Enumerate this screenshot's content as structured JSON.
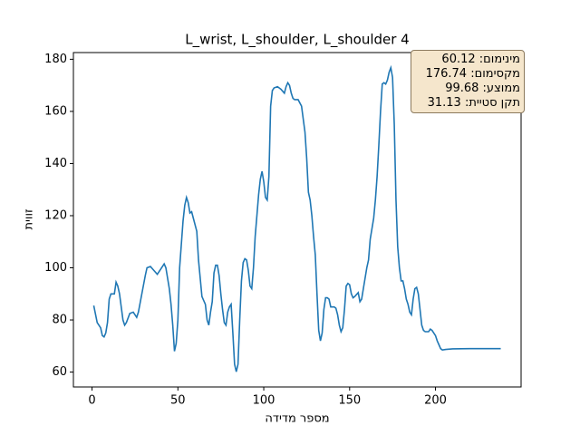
{
  "chart_data": {
    "type": "line",
    "title": "L_wrist, L_shoulder, L_shoulder 4",
    "x_label": "מספר מדידה",
    "y_label": "זווית",
    "x": [
      1,
      3,
      5,
      6,
      7,
      8,
      9,
      10,
      11,
      13,
      14,
      15,
      16,
      17,
      18,
      19,
      20,
      22,
      24,
      26,
      27,
      29,
      31,
      32,
      34,
      36,
      38,
      40,
      42,
      43,
      45,
      46,
      47,
      48,
      49,
      50,
      51,
      53,
      54,
      55,
      56,
      57,
      58,
      59,
      61,
      62,
      63,
      64,
      66,
      67,
      68,
      69,
      70,
      71,
      72,
      73,
      74,
      75,
      76,
      77,
      78,
      79,
      80,
      81,
      82,
      83,
      84,
      85,
      86,
      87,
      88,
      89,
      90,
      91,
      92,
      93,
      94,
      95,
      96,
      97,
      98,
      99,
      100,
      101,
      102,
      103,
      104,
      105,
      106,
      108,
      110,
      112,
      113,
      114,
      115,
      116,
      117,
      118,
      120,
      122,
      124,
      125,
      126,
      127,
      128,
      129,
      130,
      131,
      132,
      133,
      134,
      135,
      136,
      137,
      138,
      139,
      141,
      142,
      143,
      144,
      145,
      146,
      147,
      148,
      149,
      150,
      151,
      152,
      153,
      155,
      156,
      157,
      158,
      160,
      161,
      162,
      164,
      165,
      166,
      167,
      168,
      169,
      170,
      171,
      172,
      173,
      174,
      175,
      176,
      177,
      178,
      179,
      180,
      181,
      182,
      183,
      184,
      185,
      186,
      187,
      188,
      189,
      190,
      191,
      192,
      193,
      194,
      196,
      197,
      198,
      199,
      200,
      201,
      202,
      203,
      204,
      206,
      210,
      220,
      230,
      238
    ],
    "series": [
      {
        "name": "זווית",
        "color": "#1f77b4",
        "values": [
          85.5,
          79,
          77,
          74,
          73.5,
          75,
          79,
          88,
          90,
          90,
          94.5,
          93,
          90,
          85,
          80,
          78,
          79,
          82.5,
          83,
          81,
          83,
          90,
          97,
          100,
          100.5,
          99,
          97.5,
          99.5,
          101.5,
          100,
          92,
          86,
          78,
          68,
          71,
          80,
          100,
          118,
          124,
          127,
          125,
          121,
          121.5,
          119,
          114,
          103,
          96,
          89,
          86,
          80,
          78,
          83,
          87,
          98,
          101,
          101,
          97,
          90,
          84,
          79,
          78,
          83,
          85,
          86,
          75,
          63,
          60.12,
          63,
          80,
          95,
          102,
          103.5,
          103,
          99,
          93,
          92,
          100,
          112,
          120,
          128,
          134,
          137,
          133,
          127,
          126,
          135,
          162,
          168,
          169,
          169.5,
          168.5,
          167,
          169.5,
          171,
          170,
          167,
          165,
          164.5,
          164.5,
          162,
          152,
          142,
          129,
          126,
          120,
          112,
          105,
          90,
          76,
          72,
          75,
          84,
          88.5,
          88.5,
          88,
          85,
          85,
          84.5,
          82,
          78,
          75.5,
          77,
          84,
          93,
          94,
          93.5,
          90,
          88.5,
          89,
          90.5,
          87,
          88,
          92,
          100,
          103,
          111,
          119,
          126,
          135,
          147,
          160,
          170.5,
          171,
          170.5,
          172,
          175,
          176.74,
          173,
          155,
          126,
          108,
          100,
          95,
          95,
          92,
          88,
          86,
          83,
          82,
          88,
          92,
          92.5,
          90,
          84,
          78,
          76,
          75.5,
          75.5,
          76.5,
          76,
          75,
          74,
          72,
          70.5,
          69,
          68.5,
          68.7,
          68.9,
          69,
          69,
          69
        ]
      }
    ],
    "xlim": [
      -10.85,
      249.85
    ],
    "ylim": [
      54.29,
      182.57
    ],
    "xticks": [
      0,
      50,
      100,
      150,
      200
    ],
    "yticks": [
      60,
      80,
      100,
      120,
      140,
      160,
      180
    ],
    "stats_box": [
      "מינימום: 60.12",
      "מקסימום: 176.74",
      "ממוצע: 99.68",
      "תקן סטיית: 31.13"
    ]
  }
}
